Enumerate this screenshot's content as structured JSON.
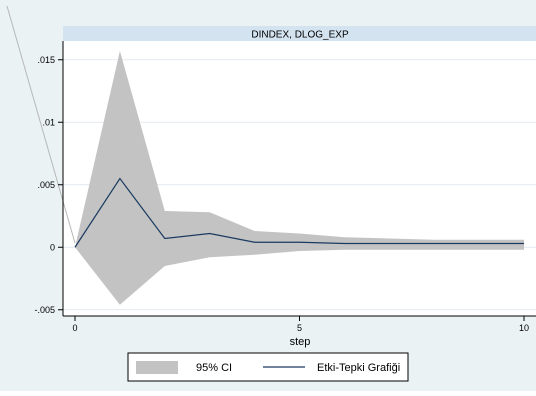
{
  "chart_data": {
    "type": "area",
    "panel_title": "DINDEX, DLOG_EXP",
    "xlabel": "step",
    "ylabel": "",
    "xlim": [
      0,
      10
    ],
    "ylim": [
      -0.0055,
      0.0165
    ],
    "x_ticks": [
      0,
      5,
      10
    ],
    "y_ticks": [
      {
        "value": -0.005,
        "label": "-.005"
      },
      {
        "value": 0,
        "label": "0"
      },
      {
        "value": 0.005,
        "label": ".005"
      },
      {
        "value": 0.01,
        "label": ".01"
      },
      {
        "value": 0.015,
        "label": ".015"
      }
    ],
    "grid": true,
    "legend_position": "bottom",
    "x": [
      0,
      1,
      2,
      3,
      4,
      5,
      6,
      7,
      8,
      9,
      10
    ],
    "series": [
      {
        "name": "95% CI",
        "kind": "band",
        "color": "#c3c3c3",
        "lower": [
          0,
          -0.0046,
          -0.0015,
          -0.0008,
          -0.0006,
          -0.0003,
          -0.0002,
          -0.0002,
          -0.0002,
          -0.0002,
          -0.0002
        ],
        "upper": [
          0,
          0.0157,
          0.0029,
          0.0028,
          0.0013,
          0.0011,
          0.0008,
          0.0007,
          0.0006,
          0.0006,
          0.0006
        ]
      },
      {
        "name": "Etki-Tepki Grafiği",
        "kind": "line",
        "color": "#1a3a60",
        "values": [
          0,
          0.0055,
          0.0007,
          0.0011,
          0.0004,
          0.0004,
          0.0003,
          0.0003,
          0.0003,
          0.0003,
          0.0003
        ]
      }
    ]
  },
  "colors": {
    "outer_background": "#eaf2f3",
    "header_strip": "#d4e3f0",
    "plot_background": "#ffffff",
    "gridline": "#e3e9ef"
  }
}
